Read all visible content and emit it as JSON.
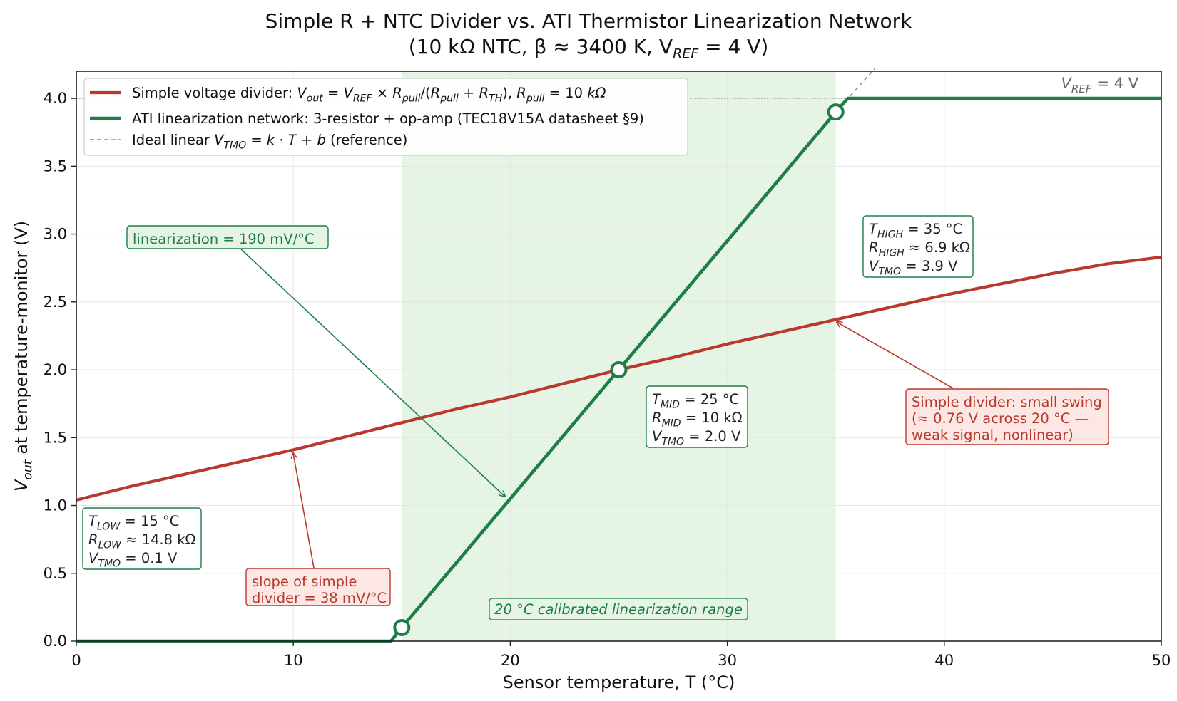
{
  "chart_data": {
    "type": "line",
    "title_line1": "Simple R + NTC Divider vs. ATI Thermistor Linearization Network",
    "title_line2_prefix": "(10 kΩ NTC,  β ≈ 3400 K,  V",
    "title_line2_sub": "REF",
    "title_line2_suffix": " = 4 V)",
    "xlabel": "Sensor temperature, T (°C)",
    "ylabel_main": "V",
    "ylabel_sub": "out",
    "ylabel_rest": " at temperature-monitor (V)",
    "xlim": [
      0,
      50
    ],
    "ylim": [
      0,
      4.2
    ],
    "x_ticks": [
      0,
      10,
      20,
      30,
      40,
      50
    ],
    "x_tick_labels": [
      "0",
      "10",
      "20",
      "30",
      "40",
      "50"
    ],
    "y_ticks": [
      0.0,
      0.5,
      1.0,
      1.5,
      2.0,
      2.5,
      3.0,
      3.5,
      4.0
    ],
    "y_tick_labels": [
      "0.0",
      "0.5",
      "1.0",
      "1.5",
      "2.0",
      "2.5",
      "3.0",
      "3.5",
      "4.0"
    ],
    "grid": true,
    "legend_position": "top-left",
    "colors": {
      "simple": "#b83a2e",
      "ati": "#1e7e45",
      "ideal": "#8a8a8a",
      "band": "#e5f4e5"
    },
    "series": [
      {
        "name": "Simple voltage divider",
        "style": "solid",
        "x": [
          0,
          2.5,
          5,
          7.5,
          10,
          12.5,
          15,
          17.5,
          20,
          22.5,
          25,
          27.5,
          30,
          32.5,
          35,
          37.5,
          40,
          42.5,
          45,
          47.5,
          50
        ],
        "y": [
          1.04,
          1.14,
          1.23,
          1.32,
          1.41,
          1.51,
          1.61,
          1.71,
          1.8,
          1.9,
          2.0,
          2.09,
          2.19,
          2.28,
          2.37,
          2.46,
          2.55,
          2.63,
          2.71,
          2.78,
          2.83
        ]
      },
      {
        "name": "ATI linearization network",
        "style": "solid",
        "x": [
          0,
          14.5,
          15,
          25,
          35,
          35.55,
          50
        ],
        "y": [
          0,
          0,
          0.1,
          2.0,
          3.9,
          4.0,
          4.0
        ]
      },
      {
        "name": "Ideal linear",
        "style": "dashed",
        "x": [
          35,
          36.8
        ],
        "y": [
          3.9,
          4.22
        ]
      }
    ],
    "calibration_points": [
      {
        "x": 15,
        "y": 0.1
      },
      {
        "x": 25,
        "y": 2.0
      },
      {
        "x": 35,
        "y": 3.9
      }
    ],
    "shaded_range": {
      "x": [
        15,
        35
      ],
      "label": "20 °C calibrated linearization range"
    },
    "vref_line": {
      "y": 4.0,
      "label_main": "V",
      "label_sub": "REF",
      "label_rest": " = 4 V"
    },
    "legend": [
      {
        "series": 0,
        "parts": [
          [
            "t",
            "Simple voltage divider: "
          ],
          [
            "i",
            "V"
          ],
          [
            "s",
            "out"
          ],
          [
            "t",
            " = "
          ],
          [
            "i",
            "V"
          ],
          [
            "s",
            "REF"
          ],
          [
            "t",
            " × "
          ],
          [
            "i",
            "R"
          ],
          [
            "s",
            "pull"
          ],
          [
            "t",
            "/("
          ],
          [
            "i",
            "R"
          ],
          [
            "s",
            "pull"
          ],
          [
            "t",
            " + "
          ],
          [
            "i",
            "R"
          ],
          [
            "s",
            "TH"
          ],
          [
            "t",
            "),  "
          ],
          [
            "i",
            "R"
          ],
          [
            "s",
            "pull"
          ],
          [
            "t",
            " = 10 "
          ],
          [
            "i",
            "kΩ"
          ]
        ]
      },
      {
        "series": 1,
        "parts": [
          [
            "t",
            "ATI linearization network: 3-resistor + op-amp (TEC18V15A datasheet §9)"
          ]
        ]
      },
      {
        "series": 2,
        "parts": [
          [
            "t",
            "Ideal linear "
          ],
          [
            "i",
            "V"
          ],
          [
            "s",
            "TMO"
          ],
          [
            "t",
            " = "
          ],
          [
            "i",
            "k"
          ],
          [
            "t",
            " · "
          ],
          [
            "i",
            "T"
          ],
          [
            "t",
            " + "
          ],
          [
            "i",
            "b"
          ],
          [
            "t",
            " (reference)"
          ]
        ]
      }
    ],
    "annotations": {
      "low_box": [
        [
          [
            "i",
            "T"
          ],
          [
            "s",
            "LOW"
          ],
          [
            "t",
            " = 15 °C"
          ]
        ],
        [
          [
            "i",
            "R"
          ],
          [
            "s",
            "LOW"
          ],
          [
            "t",
            " ≈ 14.8 kΩ"
          ]
        ],
        [
          [
            "i",
            "V"
          ],
          [
            "s",
            "TMO"
          ],
          [
            "t",
            " = 0.1 V"
          ]
        ]
      ],
      "mid_box": [
        [
          [
            "i",
            "T"
          ],
          [
            "s",
            "MID"
          ],
          [
            "t",
            " = 25 °C"
          ]
        ],
        [
          [
            "i",
            "R"
          ],
          [
            "s",
            "MID"
          ],
          [
            "t",
            " = 10 kΩ"
          ]
        ],
        [
          [
            "i",
            "V"
          ],
          [
            "s",
            "TMO"
          ],
          [
            "t",
            " = 2.0 V"
          ]
        ]
      ],
      "high_box": [
        [
          [
            "i",
            "T"
          ],
          [
            "s",
            "HIGH"
          ],
          [
            "t",
            " = 35 °C"
          ]
        ],
        [
          [
            "i",
            "R"
          ],
          [
            "s",
            "HIGH"
          ],
          [
            "t",
            " ≈ 6.9 kΩ"
          ]
        ],
        [
          [
            "i",
            "V"
          ],
          [
            "s",
            "TMO"
          ],
          [
            "t",
            " = 3.9 V"
          ]
        ]
      ],
      "linearization_label": "linearization = 190 mV/°C",
      "slope_simple_lines": [
        "slope of simple",
        "divider = 38 mV/°C"
      ],
      "simple_swing_lines": [
        "Simple divider: small swing",
        "(≈ 0.76 V across 20 °C —",
        "weak signal, nonlinear)"
      ]
    }
  }
}
